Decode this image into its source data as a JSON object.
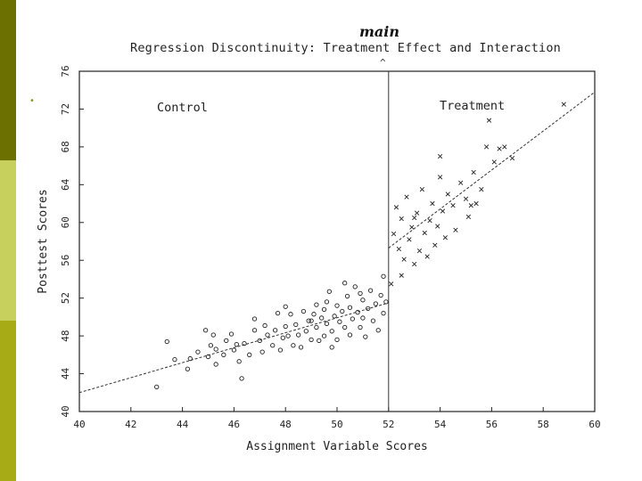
{
  "slide": {
    "colors": {
      "sidebar_top": "#6b7000",
      "sidebar_mid": "#c7cf5d",
      "sidebar_bottom": "#a7ac16"
    },
    "bullet": "•",
    "annotation": "main",
    "caret": "^"
  },
  "chart_data": {
    "type": "scatter",
    "title": "Regression Discontinuity: Treatment Effect and Interaction",
    "xlabel": "Assignment Variable Scores",
    "ylabel": "Posttest Scores",
    "xlim": [
      40,
      60
    ],
    "ylim": [
      40,
      76
    ],
    "x_ticks": [
      "40",
      "42",
      "44",
      "46",
      "48",
      "50",
      "52",
      "54",
      "56",
      "58",
      "60"
    ],
    "y_ticks": [
      "40",
      "44",
      "48",
      "52",
      "56",
      "60",
      "64",
      "68",
      "72",
      "76"
    ],
    "cutoff": 52,
    "region_labels": {
      "control": "Control",
      "treatment": "Treatment"
    },
    "regression_lines": [
      {
        "name": "Control",
        "from": [
          40,
          42
        ],
        "to": [
          52,
          51.5
        ]
      },
      {
        "name": "Treatment",
        "from": [
          52,
          57.3
        ],
        "to": [
          60,
          73.8
        ]
      }
    ],
    "series": [
      {
        "name": "Control",
        "marker": "o",
        "points": [
          [
            43.0,
            42.6
          ],
          [
            43.4,
            47.4
          ],
          [
            43.7,
            45.5
          ],
          [
            44.2,
            44.5
          ],
          [
            44.3,
            45.6
          ],
          [
            44.6,
            46.3
          ],
          [
            44.9,
            48.6
          ],
          [
            45.0,
            45.8
          ],
          [
            45.1,
            47.0
          ],
          [
            45.3,
            46.6
          ],
          [
            45.3,
            45.0
          ],
          [
            45.6,
            46.0
          ],
          [
            45.7,
            47.5
          ],
          [
            45.9,
            48.2
          ],
          [
            46.0,
            46.5
          ],
          [
            46.2,
            45.3
          ],
          [
            46.3,
            43.5
          ],
          [
            46.4,
            47.2
          ],
          [
            46.6,
            46.0
          ],
          [
            46.8,
            48.6
          ],
          [
            46.8,
            49.8
          ],
          [
            47.0,
            47.5
          ],
          [
            47.1,
            46.3
          ],
          [
            47.3,
            48.1
          ],
          [
            47.5,
            47.0
          ],
          [
            47.6,
            48.6
          ],
          [
            47.8,
            46.5
          ],
          [
            47.9,
            47.8
          ],
          [
            48.0,
            49.0
          ],
          [
            48.1,
            48.0
          ],
          [
            48.2,
            50.3
          ],
          [
            48.3,
            47.0
          ],
          [
            48.4,
            49.2
          ],
          [
            48.5,
            48.1
          ],
          [
            48.6,
            46.8
          ],
          [
            48.7,
            50.6
          ],
          [
            48.8,
            48.5
          ],
          [
            48.9,
            49.6
          ],
          [
            49.0,
            47.6
          ],
          [
            49.1,
            50.3
          ],
          [
            49.2,
            48.9
          ],
          [
            49.2,
            51.3
          ],
          [
            49.3,
            47.5
          ],
          [
            49.4,
            49.9
          ],
          [
            49.5,
            48.0
          ],
          [
            49.5,
            50.8
          ],
          [
            49.6,
            49.3
          ],
          [
            49.7,
            52.7
          ],
          [
            49.8,
            48.5
          ],
          [
            49.9,
            50.1
          ],
          [
            50.0,
            51.2
          ],
          [
            50.0,
            47.6
          ],
          [
            50.1,
            49.5
          ],
          [
            50.2,
            50.6
          ],
          [
            50.3,
            48.9
          ],
          [
            50.4,
            52.2
          ],
          [
            50.5,
            51.0
          ],
          [
            50.5,
            48.1
          ],
          [
            50.6,
            49.8
          ],
          [
            50.7,
            53.2
          ],
          [
            50.8,
            50.5
          ],
          [
            50.9,
            48.9
          ],
          [
            51.0,
            51.8
          ],
          [
            51.0,
            49.9
          ],
          [
            51.1,
            47.9
          ],
          [
            51.2,
            50.9
          ],
          [
            51.3,
            52.8
          ],
          [
            51.4,
            49.6
          ],
          [
            51.5,
            51.4
          ],
          [
            51.6,
            48.6
          ],
          [
            51.7,
            52.3
          ],
          [
            51.8,
            50.4
          ],
          [
            51.8,
            54.3
          ],
          [
            51.9,
            51.6
          ],
          [
            49.0,
            49.6
          ],
          [
            49.6,
            51.6
          ],
          [
            50.3,
            53.6
          ],
          [
            47.2,
            49.1
          ],
          [
            46.1,
            47.1
          ],
          [
            48.0,
            51.1
          ],
          [
            49.8,
            46.8
          ],
          [
            45.2,
            48.1
          ],
          [
            50.9,
            52.5
          ],
          [
            47.7,
            50.4
          ]
        ]
      },
      {
        "name": "Treatment",
        "marker": "x",
        "points": [
          [
            52.1,
            53.5
          ],
          [
            52.2,
            58.8
          ],
          [
            52.3,
            61.6
          ],
          [
            52.4,
            57.2
          ],
          [
            52.5,
            60.4
          ],
          [
            52.6,
            56.1
          ],
          [
            52.7,
            62.7
          ],
          [
            52.8,
            58.2
          ],
          [
            52.9,
            59.5
          ],
          [
            53.0,
            55.6
          ],
          [
            53.1,
            61.0
          ],
          [
            53.2,
            57.0
          ],
          [
            53.3,
            63.5
          ],
          [
            53.4,
            58.9
          ],
          [
            53.5,
            56.4
          ],
          [
            53.6,
            60.2
          ],
          [
            53.7,
            62.0
          ],
          [
            53.8,
            57.6
          ],
          [
            53.9,
            59.6
          ],
          [
            54.0,
            64.8
          ],
          [
            54.1,
            61.2
          ],
          [
            54.2,
            58.4
          ],
          [
            54.3,
            63.0
          ],
          [
            54.5,
            61.8
          ],
          [
            54.6,
            59.2
          ],
          [
            54.8,
            64.2
          ],
          [
            55.0,
            62.5
          ],
          [
            55.1,
            60.6
          ],
          [
            55.3,
            65.3
          ],
          [
            55.4,
            62.0
          ],
          [
            55.6,
            63.5
          ],
          [
            55.8,
            68.0
          ],
          [
            55.9,
            70.8
          ],
          [
            56.1,
            66.4
          ],
          [
            56.3,
            67.8
          ],
          [
            56.5,
            68.0
          ],
          [
            56.8,
            66.8
          ],
          [
            58.8,
            72.5
          ],
          [
            54.0,
            67.0
          ],
          [
            52.5,
            54.4
          ],
          [
            53.0,
            60.5
          ],
          [
            55.2,
            61.8
          ]
        ]
      }
    ]
  }
}
